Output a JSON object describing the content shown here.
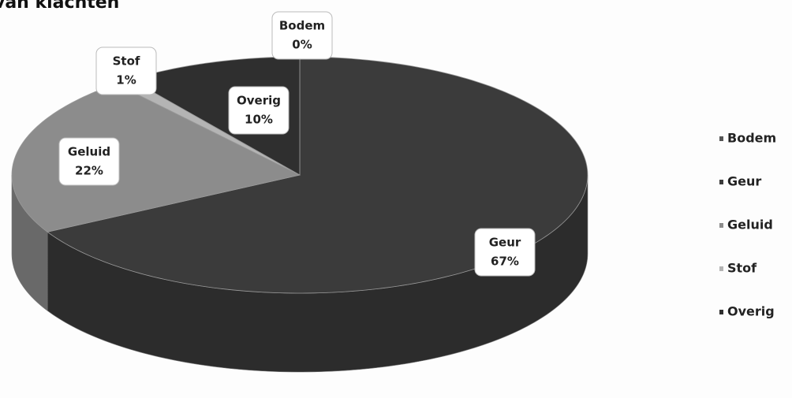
{
  "chart_data": {
    "type": "pie",
    "title": "van klachten",
    "categories": [
      "Bodem",
      "Geur",
      "Geluid",
      "Stof",
      "Overig"
    ],
    "values": [
      0,
      67,
      22,
      1,
      10
    ],
    "value_labels": [
      "0%",
      "67%",
      "22%",
      "1%",
      "10%"
    ],
    "colors": [
      "#555555",
      "#3b3b3b",
      "#8c8c8c",
      "#b4b4b4",
      "#2f2f2f"
    ],
    "legend": "right"
  }
}
